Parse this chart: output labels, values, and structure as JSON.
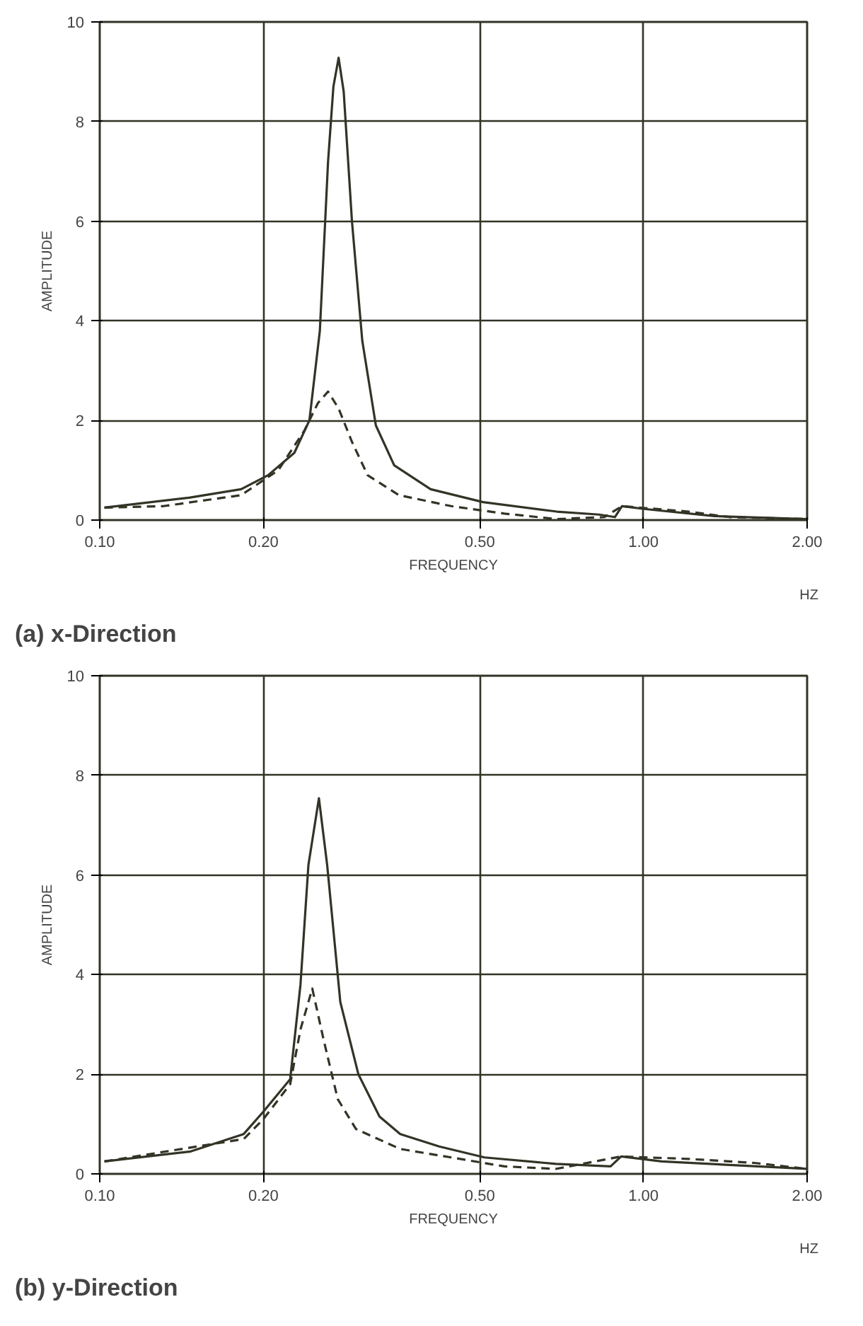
{
  "chart_data": [
    {
      "type": "line",
      "title": "(a) x-Direction",
      "xlabel": "FREQUENCY",
      "ylabel": "AMPLITUDE",
      "log": "x",
      "grid": true,
      "xlim": [
        0.1,
        2.0
      ],
      "xticks": [
        {
          "value": 0.1,
          "label": "0.10"
        },
        {
          "value": 0.2,
          "label": "0.20"
        },
        {
          "value": 0.5,
          "label": "0.50"
        },
        {
          "value": 1.0,
          "label": "1.00"
        },
        {
          "value": 2.0,
          "label": "2.00"
        }
      ],
      "ylim": [
        0,
        10
      ],
      "yticks": [
        0,
        2,
        4,
        6,
        8,
        10
      ],
      "annotations": [
        "HZ"
      ],
      "series": [
        {
          "color": "#333326",
          "line_style": "solid",
          "x": [
            0.102,
            0.146,
            0.182,
            0.204,
            0.228,
            0.243,
            0.254,
            0.263,
            0.269,
            0.275,
            0.281,
            0.291,
            0.304,
            0.322,
            0.348,
            0.406,
            0.507,
            0.693,
            0.829,
            0.886,
            0.913,
            1.01,
            1.35,
            2.0
          ],
          "values": [
            0.25,
            0.45,
            0.62,
            0.9,
            1.35,
            2.0,
            3.8,
            7.2,
            8.7,
            9.28,
            8.6,
            6.0,
            3.6,
            1.9,
            1.1,
            0.62,
            0.36,
            0.17,
            0.11,
            0.06,
            0.28,
            0.22,
            0.08,
            0.02
          ]
        },
        {
          "color": "#333326",
          "line_style": "dashed",
          "x": [
            0.102,
            0.131,
            0.182,
            0.213,
            0.238,
            0.252,
            0.263,
            0.275,
            0.291,
            0.311,
            0.355,
            0.443,
            0.555,
            0.693,
            0.847,
            0.913,
            1.21,
            1.44,
            2.0
          ],
          "values": [
            0.25,
            0.28,
            0.5,
            1.0,
            1.8,
            2.35,
            2.58,
            2.24,
            1.57,
            0.9,
            0.5,
            0.28,
            0.13,
            0.02,
            0.06,
            0.28,
            0.17,
            0.06,
            0.02
          ]
        }
      ]
    },
    {
      "type": "line",
      "title": "(b) y-Direction",
      "xlabel": "FREQUENCY",
      "ylabel": "AMPLITUDE",
      "log": "x",
      "grid": true,
      "xlim": [
        0.1,
        2.0
      ],
      "xticks": [
        {
          "value": 0.1,
          "label": "0.10"
        },
        {
          "value": 0.2,
          "label": "0.20"
        },
        {
          "value": 0.5,
          "label": "0.50"
        },
        {
          "value": 1.0,
          "label": "1.00"
        },
        {
          "value": 2.0,
          "label": "2.00"
        }
      ],
      "ylim": [
        0,
        10
      ],
      "yticks": [
        0,
        2,
        4,
        6,
        8,
        10
      ],
      "annotations": [
        "HZ"
      ],
      "series": [
        {
          "color": "#333326",
          "line_style": "solid",
          "x": [
            0.102,
            0.147,
            0.184,
            0.2,
            0.224,
            0.234,
            0.242,
            0.253,
            0.262,
            0.277,
            0.299,
            0.327,
            0.357,
            0.421,
            0.51,
            0.69,
            0.87,
            0.91,
            1.08,
            2.0
          ],
          "values": [
            0.25,
            0.45,
            0.8,
            1.25,
            1.9,
            3.8,
            6.2,
            7.54,
            6.2,
            3.45,
            2.0,
            1.15,
            0.8,
            0.55,
            0.33,
            0.2,
            0.15,
            0.35,
            0.25,
            0.1
          ]
        },
        {
          "color": "#333326",
          "line_style": "dashed",
          "x": [
            0.102,
            0.184,
            0.2,
            0.224,
            0.234,
            0.246,
            0.258,
            0.274,
            0.296,
            0.357,
            0.443,
            0.555,
            0.69,
            0.91,
            1.21,
            1.6,
            2.0
          ],
          "values": [
            0.25,
            0.7,
            1.1,
            1.8,
            2.9,
            3.72,
            2.7,
            1.5,
            0.9,
            0.5,
            0.33,
            0.15,
            0.1,
            0.35,
            0.3,
            0.22,
            0.1
          ]
        }
      ]
    }
  ]
}
